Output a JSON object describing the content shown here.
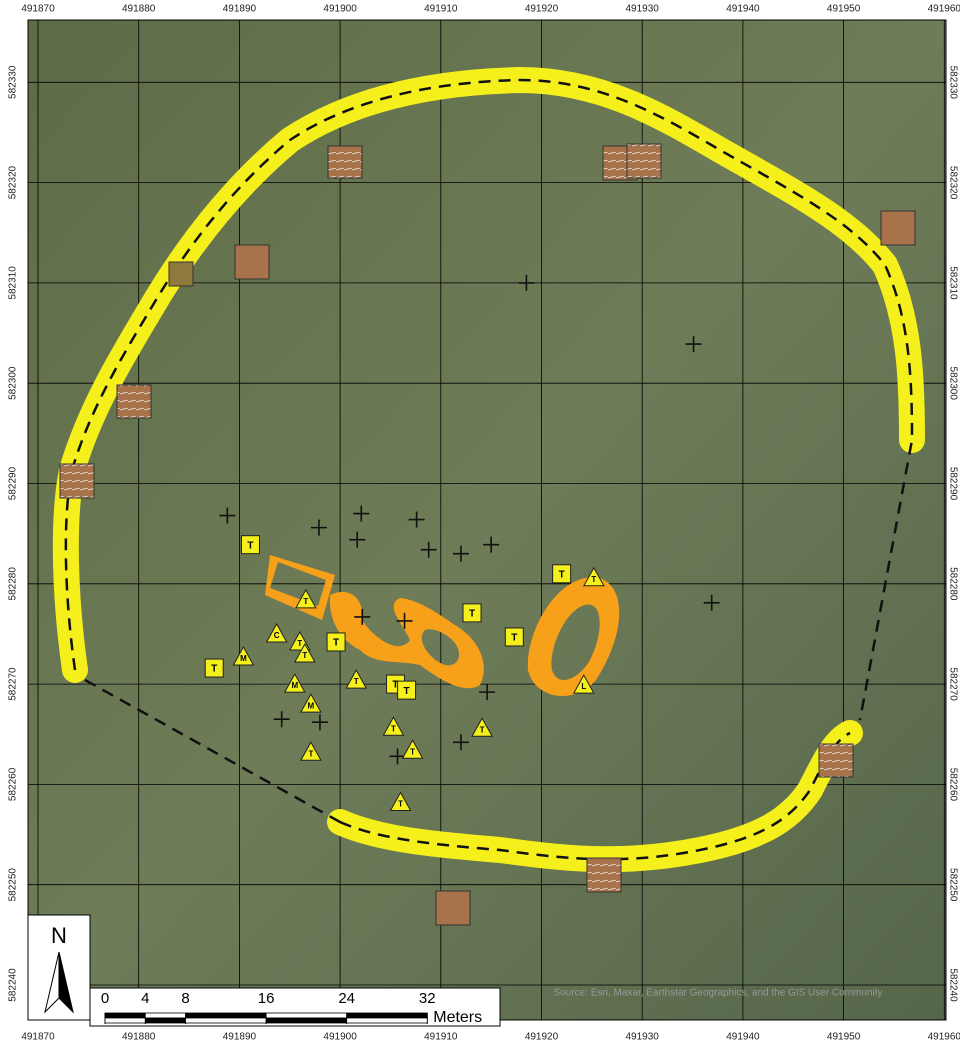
{
  "map": {
    "x_labels": [
      491870,
      491880,
      491890,
      491900,
      491910,
      491920,
      491930,
      491940,
      491950,
      491960
    ],
    "y_labels": [
      582240,
      582250,
      582260,
      582270,
      582280,
      582290,
      582300,
      582310,
      582320,
      582330
    ],
    "north": "N",
    "scale_bar": {
      "ticks": [
        0,
        4,
        8,
        16,
        24,
        32
      ],
      "unit": "Meters"
    },
    "attribution": "Source: Esri, Maxar, Earthstar Geographics, and the GIS User Community",
    "square_markers": [
      {
        "label": "T",
        "x": 491891.1,
        "y": 582283.9
      },
      {
        "label": "T",
        "x": 491887.5,
        "y": 582271.6
      },
      {
        "label": "T",
        "x": 491899.6,
        "y": 582274.2
      },
      {
        "label": "T",
        "x": 491913.1,
        "y": 582277.1
      },
      {
        "label": "T",
        "x": 491917.3,
        "y": 582274.7
      },
      {
        "label": "T",
        "x": 491922.0,
        "y": 582281.0
      },
      {
        "label": "T",
        "x": 491905.5,
        "y": 582270.0
      },
      {
        "label": "T",
        "x": 491906.6,
        "y": 582269.4
      }
    ],
    "triangle_markers": [
      {
        "label": "T",
        "x": 491896.6,
        "y": 582278.4
      },
      {
        "label": "C",
        "x": 491893.7,
        "y": 582275.0
      },
      {
        "label": "T",
        "x": 491896.0,
        "y": 582274.2
      },
      {
        "label": "T",
        "x": 491896.5,
        "y": 582273.0
      },
      {
        "label": "M",
        "x": 491890.4,
        "y": 582272.7
      },
      {
        "label": "M",
        "x": 491895.5,
        "y": 582270.0
      },
      {
        "label": "M",
        "x": 491897.1,
        "y": 582268.0
      },
      {
        "label": "T",
        "x": 491901.6,
        "y": 582270.4
      },
      {
        "label": "T",
        "x": 491905.3,
        "y": 582265.7
      },
      {
        "label": "T",
        "x": 491907.2,
        "y": 582263.4
      },
      {
        "label": "T",
        "x": 491897.1,
        "y": 582263.2
      },
      {
        "label": "T",
        "x": 491914.1,
        "y": 582265.6
      },
      {
        "label": "T",
        "x": 491906.0,
        "y": 582258.2
      },
      {
        "label": "T",
        "x": 491925.2,
        "y": 582280.6
      },
      {
        "label": "L",
        "x": 491924.2,
        "y": 582269.9
      }
    ],
    "crosses": [
      {
        "x": 491888.8,
        "y": 582286.8
      },
      {
        "x": 491897.9,
        "y": 582285.6
      },
      {
        "x": 491902.1,
        "y": 582287.0
      },
      {
        "x": 491901.7,
        "y": 582284.4
      },
      {
        "x": 491907.6,
        "y": 582286.4
      },
      {
        "x": 491908.8,
        "y": 582283.4
      },
      {
        "x": 491912.0,
        "y": 582283.0
      },
      {
        "x": 491915.0,
        "y": 582283.9
      },
      {
        "x": 491918.5,
        "y": 582310.0
      },
      {
        "x": 491935.1,
        "y": 582303.9
      },
      {
        "x": 491936.9,
        "y": 582278.1
      },
      {
        "x": 491902.2,
        "y": 582276.7
      },
      {
        "x": 491906.4,
        "y": 582276.3
      },
      {
        "x": 491914.6,
        "y": 582269.2
      },
      {
        "x": 491894.2,
        "y": 582266.5
      },
      {
        "x": 491898.0,
        "y": 582266.2
      },
      {
        "x": 491905.7,
        "y": 582262.8
      },
      {
        "x": 491912.0,
        "y": 582264.2
      }
    ]
  }
}
